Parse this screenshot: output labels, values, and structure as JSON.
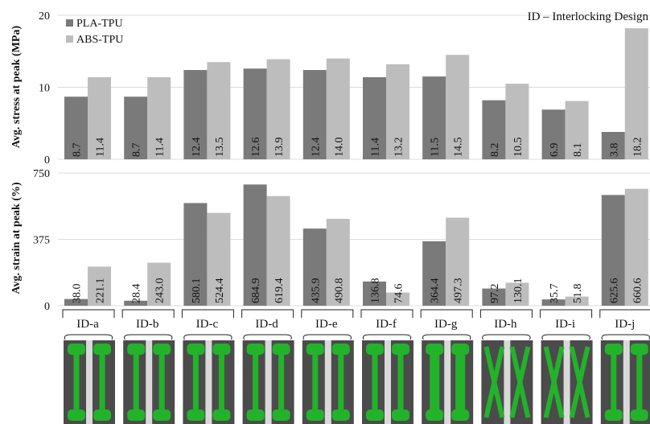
{
  "chart_data": [
    {
      "type": "bar",
      "title": "",
      "annotation": "ID – Interlocking Design",
      "ylabel": "Avg. stress at peak (MPa)",
      "ylim": [
        0,
        20
      ],
      "yticks": [
        "0",
        "10",
        "20"
      ],
      "grid": true,
      "legend_position": "top-left",
      "categories": [
        "ID-a",
        "ID-b",
        "ID-c",
        "ID-d",
        "ID-e",
        "ID-f",
        "ID-g",
        "ID-h",
        "ID-i",
        "ID-j"
      ],
      "series": [
        {
          "name": "PLA-TPU",
          "color": "#7a7a7a",
          "values": [
            8.7,
            8.7,
            12.4,
            12.6,
            12.4,
            11.4,
            11.5,
            8.2,
            6.9,
            3.8
          ],
          "labels": [
            "8.7",
            "8.7",
            "12.4",
            "12.6",
            "12.4",
            "11.4",
            "11.5",
            "8.2",
            "6.9",
            "3.8"
          ]
        },
        {
          "name": "ABS-TPU",
          "color": "#bdbdbd",
          "values": [
            11.4,
            11.4,
            13.5,
            13.9,
            14.0,
            13.2,
            14.5,
            10.5,
            8.1,
            18.2
          ],
          "labels": [
            "11.4",
            "11.4",
            "13.5",
            "13.9",
            "14.0",
            "13.2",
            "14.5",
            "10.5",
            "8.1",
            "18.2"
          ]
        }
      ]
    },
    {
      "type": "bar",
      "ylabel": "Avg. strain  at peak (%)",
      "ylim": [
        0,
        750
      ],
      "yticks": [
        "0",
        "375",
        "750"
      ],
      "grid": true,
      "categories": [
        "ID-a",
        "ID-b",
        "ID-c",
        "ID-d",
        "ID-e",
        "ID-f",
        "ID-g",
        "ID-h",
        "ID-i",
        "ID-j"
      ],
      "series": [
        {
          "name": "PLA-TPU",
          "color": "#7a7a7a",
          "values": [
            38.0,
            28.4,
            580.1,
            684.9,
            435.9,
            136.8,
            364.4,
            97.2,
            35.7,
            625.6
          ],
          "labels": [
            "38.0",
            "28.4",
            "580.1",
            "684.9",
            "435.9",
            "136.8",
            "364.4",
            "97.2",
            "35.7",
            "625.6"
          ]
        },
        {
          "name": "ABS-TPU",
          "color": "#bdbdbd",
          "values": [
            221.1,
            243.0,
            524.4,
            619.4,
            490.8,
            74.6,
            497.3,
            130.1,
            51.8,
            660.6
          ],
          "labels": [
            "221.1",
            "243.0",
            "524.4",
            "619.4",
            "490.8",
            "74.6",
            "497.3",
            "130.1",
            "51.8",
            "660.6"
          ]
        }
      ]
    }
  ],
  "specimens": {
    "photo_color": "#22b32a",
    "shapes": [
      "straight",
      "straight",
      "straight",
      "straight",
      "straight",
      "straight",
      "wide",
      "cross",
      "cross",
      "straight"
    ]
  }
}
